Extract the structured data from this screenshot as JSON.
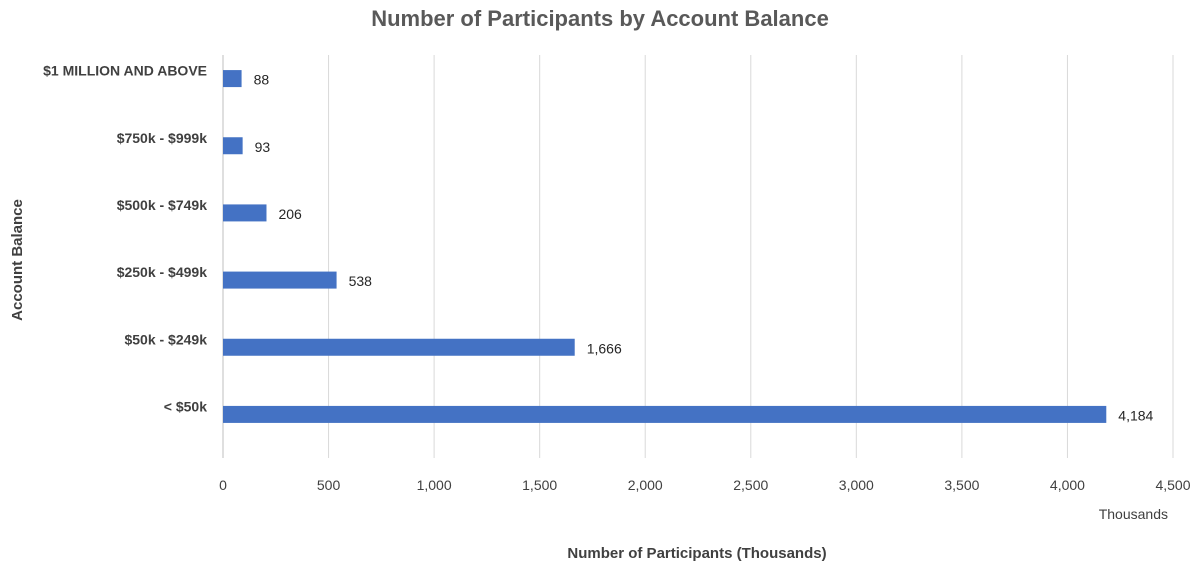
{
  "chart_data": {
    "type": "bar",
    "orientation": "horizontal",
    "title": "Number of Participants by Account Balance",
    "xlabel": "Number of Participants (Thousands)",
    "ylabel": "Account Balance",
    "x_unit_label": "Thousands",
    "categories": [
      "$1 MILLION AND ABOVE",
      "$750k - $999k",
      "$500k - $749k",
      "$250k - $499k",
      "$50k - $249k",
      "< $50k"
    ],
    "values": [
      88,
      93,
      206,
      538,
      1666,
      4184
    ],
    "value_labels": [
      "88",
      "93",
      "206",
      "538",
      "1,666",
      "4,184"
    ],
    "xlim": [
      0,
      4500
    ],
    "xticks": [
      0,
      500,
      1000,
      1500,
      2000,
      2500,
      3000,
      3500,
      4000,
      4500
    ],
    "xtick_labels": [
      "0",
      "500",
      "1,000",
      "1,500",
      "2,000",
      "2,500",
      "3,000",
      "3,500",
      "4,000",
      "4,500"
    ],
    "grid": "vertical",
    "legend": "none",
    "bar_color": "#4472C4",
    "grid_color": "#D9D9D9"
  }
}
